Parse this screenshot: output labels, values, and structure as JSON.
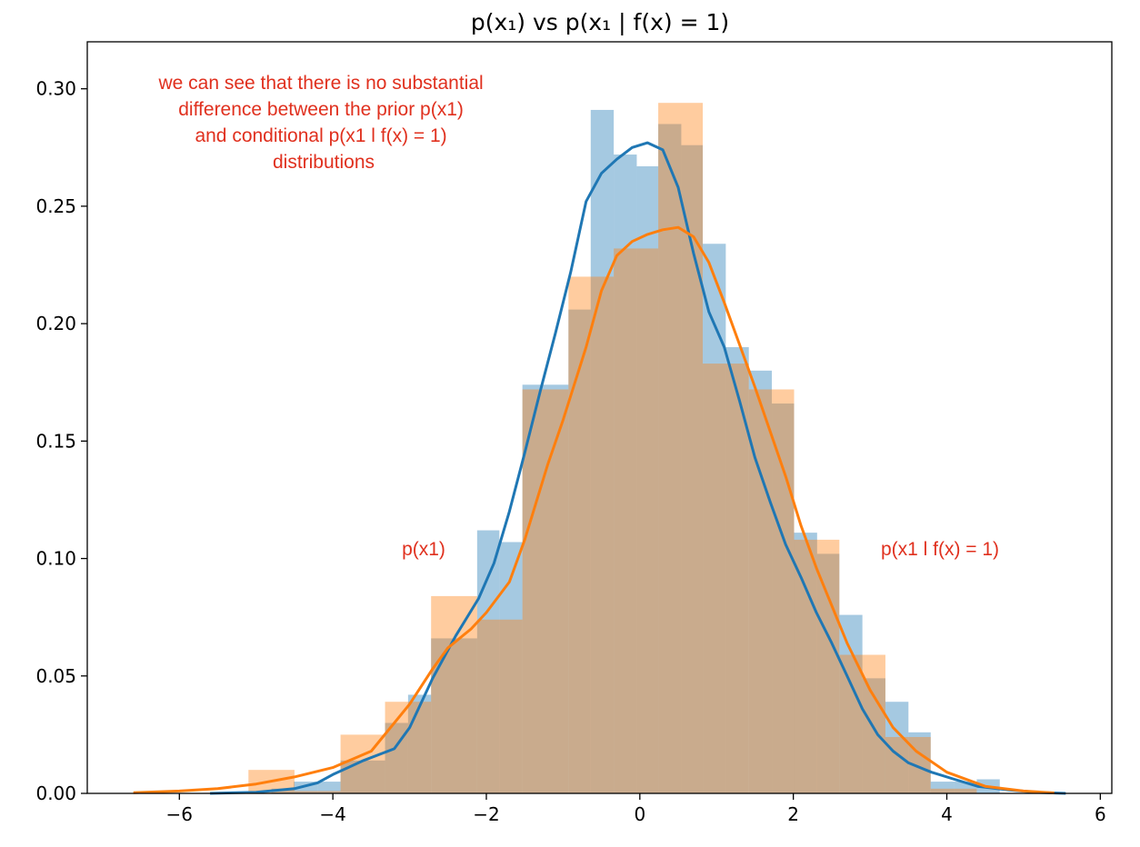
{
  "chart_data": {
    "type": "bar",
    "title": "p(x₁) vs p(x₁ | f(x) = 1)",
    "xlim": [
      -7.2,
      6.15
    ],
    "ylim": [
      0,
      0.32
    ],
    "x_ticks": [
      -6,
      -4,
      -2,
      0,
      2,
      4,
      6
    ],
    "x_tick_labels": [
      "−6",
      "−4",
      "−2",
      "0",
      "2",
      "4",
      "6"
    ],
    "y_ticks": [
      0.0,
      0.05,
      0.1,
      0.15,
      0.2,
      0.25,
      0.3
    ],
    "y_tick_labels": [
      "0.00",
      "0.05",
      "0.10",
      "0.15",
      "0.20",
      "0.25",
      "0.30"
    ],
    "grid": false,
    "colors": {
      "prior_hist": "#1f77b4",
      "conditional_hist": "#ff7f0e",
      "prior_kde": "#1f77b4",
      "conditional_kde": "#ff7f0e",
      "annotation": "#e0301e"
    },
    "series": [
      {
        "kind": "histogram",
        "color_key": "prior_hist",
        "bins": [
          {
            "x0": -4.8,
            "x1": -4.51,
            "h": 0.002
          },
          {
            "x0": -4.51,
            "x1": -4.2,
            "h": 0.005
          },
          {
            "x0": -4.2,
            "x1": -3.9,
            "h": 0.005
          },
          {
            "x0": -3.9,
            "x1": -3.32,
            "h": 0.014
          },
          {
            "x0": -3.32,
            "x1": -3.02,
            "h": 0.03
          },
          {
            "x0": -3.02,
            "x1": -2.72,
            "h": 0.042
          },
          {
            "x0": -2.72,
            "x1": -2.12,
            "h": 0.066
          },
          {
            "x0": -2.12,
            "x1": -1.83,
            "h": 0.112
          },
          {
            "x0": -1.83,
            "x1": -1.53,
            "h": 0.107
          },
          {
            "x0": -1.53,
            "x1": -0.93,
            "h": 0.174
          },
          {
            "x0": -0.93,
            "x1": -0.64,
            "h": 0.206
          },
          {
            "x0": -0.64,
            "x1": -0.34,
            "h": 0.291
          },
          {
            "x0": -0.34,
            "x1": -0.04,
            "h": 0.272
          },
          {
            "x0": -0.04,
            "x1": 0.24,
            "h": 0.267
          },
          {
            "x0": 0.24,
            "x1": 0.54,
            "h": 0.285
          },
          {
            "x0": 0.54,
            "x1": 0.82,
            "h": 0.276
          },
          {
            "x0": 0.82,
            "x1": 1.12,
            "h": 0.234
          },
          {
            "x0": 1.12,
            "x1": 1.42,
            "h": 0.19
          },
          {
            "x0": 1.42,
            "x1": 1.72,
            "h": 0.18
          },
          {
            "x0": 1.72,
            "x1": 2.01,
            "h": 0.166
          },
          {
            "x0": 2.01,
            "x1": 2.31,
            "h": 0.111
          },
          {
            "x0": 2.31,
            "x1": 2.6,
            "h": 0.102
          },
          {
            "x0": 2.6,
            "x1": 2.9,
            "h": 0.076
          },
          {
            "x0": 2.9,
            "x1": 3.2,
            "h": 0.049
          },
          {
            "x0": 3.2,
            "x1": 3.5,
            "h": 0.039
          },
          {
            "x0": 3.5,
            "x1": 3.79,
            "h": 0.026
          },
          {
            "x0": 3.79,
            "x1": 4.09,
            "h": 0.005
          },
          {
            "x0": 4.09,
            "x1": 4.39,
            "h": 0.005
          },
          {
            "x0": 4.39,
            "x1": 4.69,
            "h": 0.006
          }
        ]
      },
      {
        "kind": "histogram",
        "color_key": "conditional_hist",
        "bins": [
          {
            "x0": -5.1,
            "x1": -4.5,
            "h": 0.01
          },
          {
            "x0": -4.5,
            "x1": -3.9,
            "h": 0.001
          },
          {
            "x0": -3.9,
            "x1": -3.32,
            "h": 0.025
          },
          {
            "x0": -3.32,
            "x1": -2.72,
            "h": 0.039
          },
          {
            "x0": -2.72,
            "x1": -2.12,
            "h": 0.084
          },
          {
            "x0": -2.12,
            "x1": -1.53,
            "h": 0.074
          },
          {
            "x0": -1.53,
            "x1": -0.93,
            "h": 0.172
          },
          {
            "x0": -0.93,
            "x1": -0.34,
            "h": 0.22
          },
          {
            "x0": -0.34,
            "x1": 0.24,
            "h": 0.232
          },
          {
            "x0": 0.24,
            "x1": 0.82,
            "h": 0.294
          },
          {
            "x0": 0.82,
            "x1": 1.42,
            "h": 0.183
          },
          {
            "x0": 1.42,
            "x1": 2.01,
            "h": 0.172
          },
          {
            "x0": 2.01,
            "x1": 2.6,
            "h": 0.108
          },
          {
            "x0": 2.6,
            "x1": 3.2,
            "h": 0.059
          },
          {
            "x0": 3.2,
            "x1": 3.79,
            "h": 0.024
          },
          {
            "x0": 3.79,
            "x1": 4.39,
            "h": 0.002
          }
        ]
      },
      {
        "kind": "kde",
        "color_key": "prior_kde",
        "x": [
          -5.6,
          -5.0,
          -4.5,
          -4.2,
          -4.0,
          -3.6,
          -3.2,
          -3.0,
          -2.7,
          -2.4,
          -2.1,
          -1.9,
          -1.7,
          -1.5,
          -1.3,
          -1.1,
          -0.9,
          -0.7,
          -0.5,
          -0.3,
          -0.1,
          0.1,
          0.3,
          0.5,
          0.7,
          0.9,
          1.1,
          1.3,
          1.5,
          1.7,
          1.9,
          2.1,
          2.3,
          2.5,
          2.7,
          2.9,
          3.1,
          3.3,
          3.5,
          3.8,
          4.1,
          4.4,
          4.8,
          5.2,
          5.55
        ],
        "y": [
          0.0,
          0.0005,
          0.002,
          0.0045,
          0.008,
          0.014,
          0.019,
          0.028,
          0.049,
          0.067,
          0.083,
          0.098,
          0.12,
          0.145,
          0.171,
          0.196,
          0.222,
          0.252,
          0.264,
          0.27,
          0.275,
          0.277,
          0.274,
          0.258,
          0.23,
          0.205,
          0.19,
          0.167,
          0.143,
          0.124,
          0.106,
          0.092,
          0.077,
          0.064,
          0.05,
          0.036,
          0.025,
          0.018,
          0.013,
          0.009,
          0.006,
          0.003,
          0.0015,
          0.0004,
          0.0
        ]
      },
      {
        "kind": "kde",
        "color_key": "conditional_kde",
        "x": [
          -6.6,
          -6.0,
          -5.5,
          -5.0,
          -4.5,
          -4.0,
          -3.5,
          -3.0,
          -2.7,
          -2.5,
          -2.2,
          -2.0,
          -1.7,
          -1.5,
          -1.2,
          -1.0,
          -0.7,
          -0.5,
          -0.3,
          -0.1,
          0.1,
          0.3,
          0.5,
          0.7,
          0.9,
          1.1,
          1.3,
          1.5,
          1.7,
          1.9,
          2.1,
          2.3,
          2.5,
          2.7,
          3.0,
          3.3,
          3.6,
          4.0,
          4.5,
          5.0,
          5.4
        ],
        "y": [
          0.0003,
          0.001,
          0.002,
          0.004,
          0.007,
          0.011,
          0.018,
          0.038,
          0.053,
          0.062,
          0.07,
          0.077,
          0.09,
          0.108,
          0.14,
          0.159,
          0.19,
          0.214,
          0.229,
          0.235,
          0.238,
          0.24,
          0.241,
          0.237,
          0.226,
          0.209,
          0.191,
          0.173,
          0.154,
          0.135,
          0.114,
          0.096,
          0.08,
          0.064,
          0.044,
          0.028,
          0.018,
          0.009,
          0.003,
          0.001,
          0.0002
        ]
      }
    ],
    "annotations": {
      "note_lines": [
        "we can see that there is no substantial",
        "difference between the prior p(x1)",
        "and conditional p(x1 l f(x) = 1)",
        "distributions"
      ],
      "prior_label": "p(x1)",
      "conditional_label": "p(x1 l f(x) = 1)"
    }
  }
}
